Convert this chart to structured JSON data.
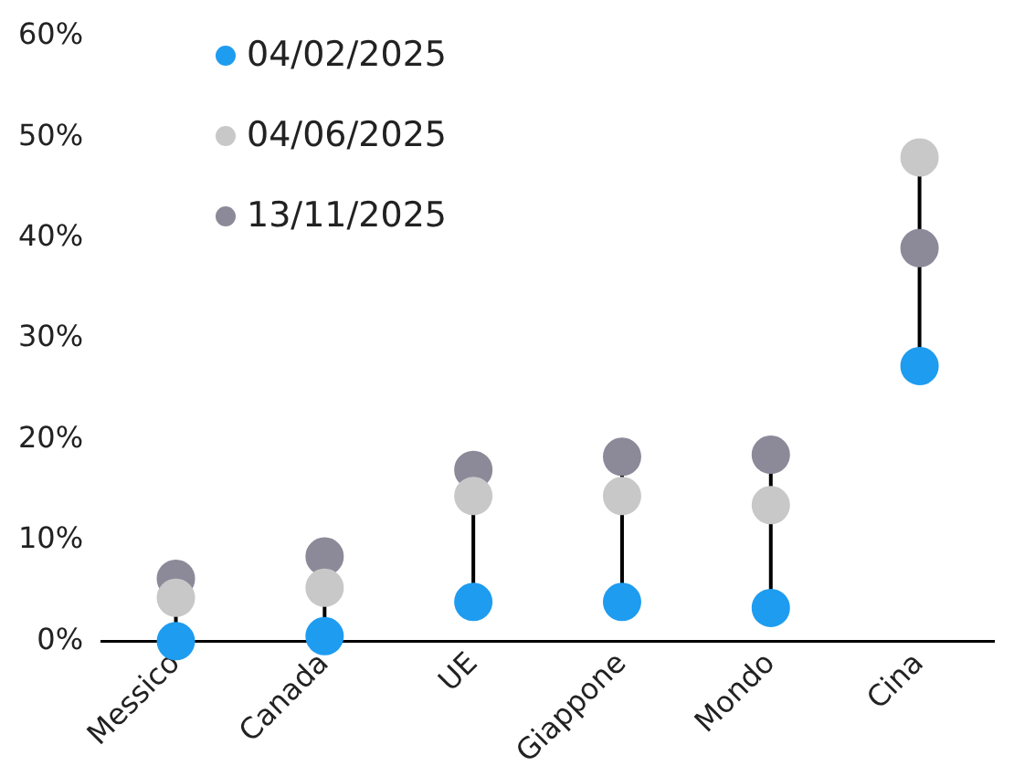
{
  "chart_data": {
    "type": "scatter",
    "categories": [
      "Messico",
      "Canada",
      "UE",
      "Giappone",
      "Mondo",
      "Cina"
    ],
    "series": [
      {
        "name": "04/02/2025",
        "color": "#1e9cf0",
        "values": [
          0,
          0.5,
          3.9,
          3.9,
          3.3,
          27.3
        ]
      },
      {
        "name": "04/06/2025",
        "color": "#c8c8c8",
        "values": [
          4.3,
          5.3,
          14.4,
          14.4,
          13.5,
          48
        ]
      },
      {
        "name": "13/11/2025",
        "color": "#8c8a99",
        "values": [
          6.2,
          8.4,
          17,
          18.3,
          18.5,
          39
        ]
      }
    ],
    "ylim": [
      0,
      60
    ],
    "yticks": [
      {
        "value": 0,
        "label": "0%"
      },
      {
        "value": 10,
        "label": "10%"
      },
      {
        "value": 20,
        "label": "20%"
      },
      {
        "value": 30,
        "label": "30%"
      },
      {
        "value": 40,
        "label": "40%"
      },
      {
        "value": 50,
        "label": "50%"
      },
      {
        "value": 60,
        "label": "60%"
      }
    ],
    "grid": false,
    "legend": "top left",
    "marker": "circle"
  }
}
